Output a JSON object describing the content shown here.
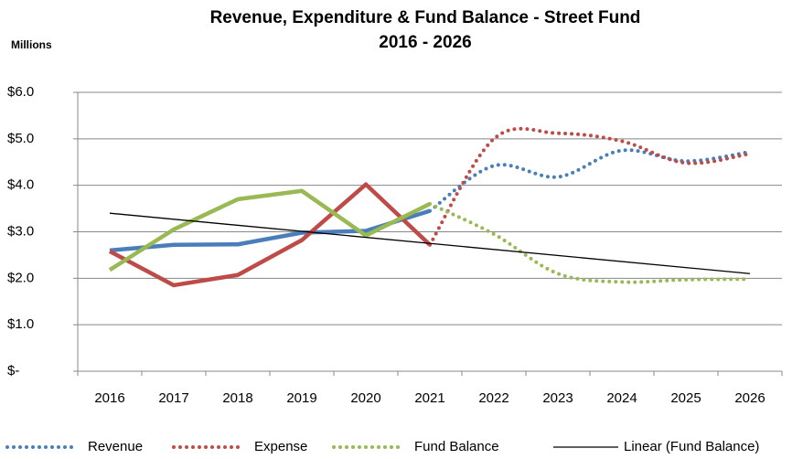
{
  "chart_data": {
    "type": "line",
    "title": [
      "Revenue, Expenditure & Fund Balance - Street Fund",
      "2016 - 2026"
    ],
    "y_axis_label": "Millions",
    "categories": [
      "2016",
      "2017",
      "2018",
      "2019",
      "2020",
      "2021",
      "2022",
      "2023",
      "2024",
      "2025",
      "2026"
    ],
    "solid_through": "2021",
    "series": [
      {
        "name": "Revenue",
        "color": "#4a7ebb",
        "values": [
          2.6,
          2.72,
          2.73,
          2.98,
          3.02,
          3.45,
          4.42,
          4.18,
          4.75,
          4.52,
          4.72
        ]
      },
      {
        "name": "Expense",
        "color": "#be4b48",
        "values": [
          2.58,
          1.85,
          2.07,
          2.82,
          4.02,
          2.72,
          5.0,
          5.12,
          4.95,
          4.48,
          4.68
        ]
      },
      {
        "name": "Fund Balance",
        "color": "#98b954",
        "values": [
          2.18,
          3.05,
          3.7,
          3.88,
          2.92,
          3.6,
          2.95,
          2.1,
          1.92,
          1.97,
          1.98
        ]
      }
    ],
    "trendline": {
      "name": "Linear (Fund Balance)",
      "color": "#000000",
      "start": 3.4,
      "end": 2.1
    },
    "ylim": [
      0,
      6
    ],
    "yticks": [
      {
        "value": 0,
        "label": "$-"
      },
      {
        "value": 1,
        "label": "$1.0"
      },
      {
        "value": 2,
        "label": "$2.0"
      },
      {
        "value": 3,
        "label": "$3.0"
      },
      {
        "value": 4,
        "label": "$4.0"
      },
      {
        "value": 5,
        "label": "$5.0"
      },
      {
        "value": 6,
        "label": "$6.0"
      }
    ],
    "grid": true,
    "legend": "bottom"
  }
}
